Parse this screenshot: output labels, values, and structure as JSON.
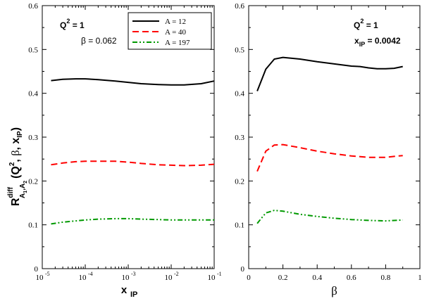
{
  "chart_data": [
    {
      "type": "line",
      "xscale": "log",
      "xlim": [
        1e-05,
        0.1
      ],
      "ylim": [
        0,
        0.6
      ],
      "xlabel": "x_IP",
      "ylabel": "R^diff_{A1,A2}(Q^2, β, x_IP)",
      "yticks": [
        "0",
        "0.1",
        "0.2",
        "0.3",
        "0.4",
        "0.5",
        "0.6"
      ],
      "xticks": [
        {
          "base": "10",
          "exp": "-5"
        },
        {
          "base": "10",
          "exp": "-4"
        },
        {
          "base": "10",
          "exp": "-3"
        },
        {
          "base": "10",
          "exp": "-2"
        },
        {
          "base": "10",
          "exp": "-1"
        }
      ],
      "annotations": {
        "q2": "Q",
        "q2_sup": "2",
        "q2_val": " = 1",
        "param": "β = 0.062"
      },
      "legend_position": "top-right",
      "series": [
        {
          "name": "A = 12",
          "color": "#000000",
          "dash": "solid",
          "x": [
            1.6e-05,
            3e-05,
            6e-05,
            0.0001,
            0.0002,
            0.0005,
            0.001,
            0.002,
            0.005,
            0.01,
            0.02,
            0.05,
            0.1
          ],
          "y": [
            0.429,
            0.432,
            0.433,
            0.433,
            0.431,
            0.428,
            0.425,
            0.422,
            0.42,
            0.419,
            0.419,
            0.422,
            0.428
          ]
        },
        {
          "name": "A = 40",
          "color": "#ff0000",
          "dash": "dashed",
          "x": [
            1.6e-05,
            3e-05,
            6e-05,
            0.0001,
            0.0002,
            0.0005,
            0.001,
            0.002,
            0.005,
            0.01,
            0.02,
            0.05,
            0.1
          ],
          "y": [
            0.237,
            0.241,
            0.244,
            0.245,
            0.245,
            0.245,
            0.243,
            0.24,
            0.237,
            0.236,
            0.235,
            0.236,
            0.238
          ]
        },
        {
          "name": "A = 197",
          "color": "#009900",
          "dash": "dashdotdot",
          "x": [
            1.6e-05,
            3e-05,
            6e-05,
            0.0001,
            0.0002,
            0.0005,
            0.001,
            0.002,
            0.005,
            0.01,
            0.02,
            0.05,
            0.1
          ],
          "y": [
            0.102,
            0.106,
            0.109,
            0.111,
            0.113,
            0.114,
            0.114,
            0.113,
            0.112,
            0.111,
            0.111,
            0.111,
            0.111
          ]
        }
      ]
    },
    {
      "type": "line",
      "xscale": "linear",
      "xlim": [
        0,
        1
      ],
      "ylim": [
        0,
        0.6
      ],
      "xlabel": "β",
      "yticks": [
        "0",
        "0.1",
        "0.2",
        "0.3",
        "0.4",
        "0.5",
        "0.6"
      ],
      "xticks": [
        "0",
        "0.2",
        "0.4",
        "0.6",
        "0.8",
        "1"
      ],
      "annotations": {
        "q2": "Q",
        "q2_sup": "2",
        "q2_val": " = 1",
        "xip": "x",
        "xip_sub": "IP",
        "xip_val": " = 0.0042"
      },
      "series": [
        {
          "name": "A = 12",
          "color": "#000000",
          "dash": "solid",
          "x": [
            0.05,
            0.1,
            0.15,
            0.2,
            0.3,
            0.4,
            0.5,
            0.6,
            0.65,
            0.7,
            0.75,
            0.8,
            0.85,
            0.9
          ],
          "y": [
            0.405,
            0.455,
            0.478,
            0.482,
            0.478,
            0.472,
            0.467,
            0.462,
            0.461,
            0.458,
            0.456,
            0.456,
            0.457,
            0.461
          ]
        },
        {
          "name": "A = 40",
          "color": "#ff0000",
          "dash": "dashed",
          "x": [
            0.05,
            0.1,
            0.15,
            0.2,
            0.3,
            0.4,
            0.5,
            0.6,
            0.7,
            0.8,
            0.85,
            0.9
          ],
          "y": [
            0.222,
            0.268,
            0.282,
            0.283,
            0.276,
            0.268,
            0.262,
            0.257,
            0.254,
            0.254,
            0.256,
            0.258
          ]
        },
        {
          "name": "A = 197",
          "color": "#009900",
          "dash": "dashdotdot",
          "x": [
            0.05,
            0.07,
            0.1,
            0.15,
            0.2,
            0.3,
            0.4,
            0.5,
            0.6,
            0.7,
            0.8,
            0.9
          ],
          "y": [
            0.103,
            0.113,
            0.127,
            0.133,
            0.131,
            0.124,
            0.119,
            0.115,
            0.112,
            0.11,
            0.109,
            0.111
          ]
        }
      ]
    }
  ]
}
